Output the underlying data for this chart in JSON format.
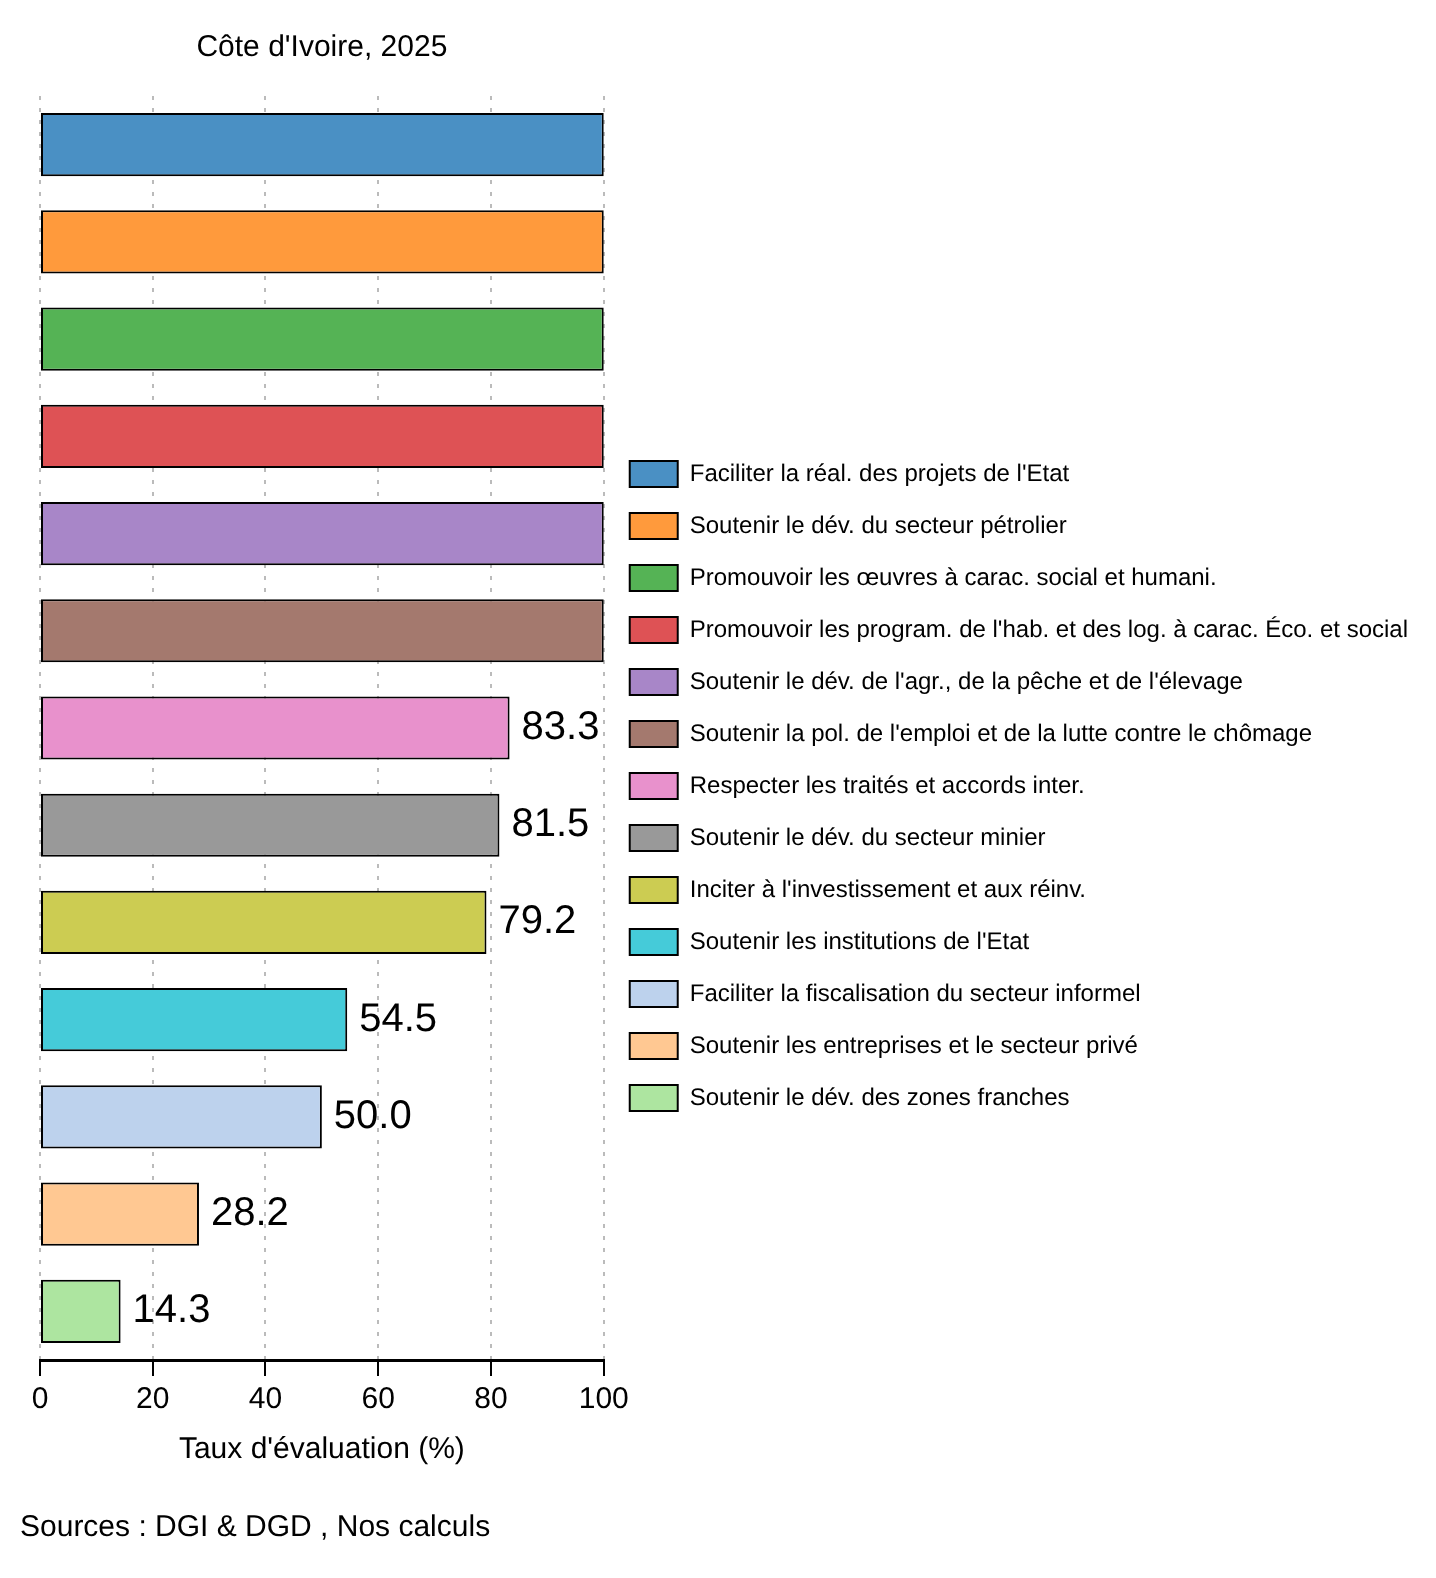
{
  "chart_data": {
    "type": "bar",
    "orientation": "horizontal",
    "title": "Côte d'Ivoire, 2025",
    "xlabel": "Taux d'évaluation (%)",
    "annotations": [
      "Sources : DGI & DGD , Nos calculs"
    ],
    "categories": [
      null,
      null,
      null,
      null,
      null,
      null,
      null,
      null,
      null,
      null,
      null,
      null,
      null
    ],
    "series": [
      {
        "name": "Faciliter la réal. des projets de l'Etat",
        "color": "#4a90c4",
        "values": [
          100,
          null,
          null,
          null,
          null,
          null,
          null,
          null,
          null,
          null,
          null,
          null,
          null
        ]
      },
      {
        "name": "Soutenir le dév. du secteur pétrolier",
        "color": "#ff9a3c",
        "values": [
          null,
          100,
          null,
          null,
          null,
          null,
          null,
          null,
          null,
          null,
          null,
          null,
          null
        ]
      },
      {
        "name": "Promouvoir les œuvres à carac. social et humani.",
        "color": "#55b355",
        "values": [
          null,
          null,
          100,
          null,
          null,
          null,
          null,
          null,
          null,
          null,
          null,
          null,
          null
        ]
      },
      {
        "name": "Promouvoir les program. de l'hab. et des log. à carac. Éco. et social",
        "color": "#de5255",
        "values": [
          null,
          null,
          null,
          100,
          null,
          null,
          null,
          null,
          null,
          null,
          null,
          null,
          null
        ]
      },
      {
        "name": "Soutenir le dév. de l'agr., de la pêche et de l'élevage",
        "color": "#a886c8",
        "values": [
          null,
          null,
          null,
          null,
          100,
          null,
          null,
          null,
          null,
          null,
          null,
          null,
          null
        ]
      },
      {
        "name": "Soutenir la pol. de l'emploi et de la lutte contre le chômage",
        "color": "#a4796e",
        "values": [
          null,
          null,
          null,
          null,
          null,
          100,
          null,
          null,
          null,
          null,
          null,
          null,
          null
        ]
      },
      {
        "name": "Respecter les traités et accords inter.",
        "color": "#e891cc",
        "values": [
          null,
          null,
          null,
          null,
          null,
          null,
          83.3,
          null,
          null,
          null,
          null,
          null,
          null
        ],
        "value_labels": [
          null,
          null,
          null,
          null,
          null,
          null,
          "83.3",
          null,
          null,
          null,
          null,
          null,
          null
        ]
      },
      {
        "name": "Soutenir le dév. du secteur minier",
        "color": "#999999",
        "values": [
          null,
          null,
          null,
          null,
          null,
          null,
          null,
          81.5,
          null,
          null,
          null,
          null,
          null
        ],
        "value_labels": [
          null,
          null,
          null,
          null,
          null,
          null,
          null,
          "81.5",
          null,
          null,
          null,
          null,
          null
        ]
      },
      {
        "name": "Inciter à l'investissement et aux réinv.",
        "color": "#cccc52",
        "values": [
          null,
          null,
          null,
          null,
          null,
          null,
          null,
          null,
          79.2,
          null,
          null,
          null,
          null
        ],
        "value_labels": [
          null,
          null,
          null,
          null,
          null,
          null,
          null,
          null,
          "79.2",
          null,
          null,
          null,
          null
        ]
      },
      {
        "name": "Soutenir les institutions de l'Etat",
        "color": "#45cbd9",
        "values": [
          null,
          null,
          null,
          null,
          null,
          null,
          null,
          null,
          null,
          54.5,
          null,
          null,
          null
        ],
        "value_labels": [
          null,
          null,
          null,
          null,
          null,
          null,
          null,
          null,
          null,
          "54.5",
          null,
          null,
          null
        ]
      },
      {
        "name": "Faciliter la fiscalisation du secteur informel",
        "color": "#bdd2ed",
        "values": [
          null,
          null,
          null,
          null,
          null,
          null,
          null,
          null,
          null,
          null,
          50.0,
          null,
          null
        ],
        "value_labels": [
          null,
          null,
          null,
          null,
          null,
          null,
          null,
          null,
          null,
          null,
          "50.0",
          null,
          null
        ]
      },
      {
        "name": "Soutenir les entreprises et le secteur privé",
        "color": "#ffc892",
        "values": [
          null,
          null,
          null,
          null,
          null,
          null,
          null,
          null,
          null,
          null,
          null,
          28.2,
          null
        ],
        "value_labels": [
          null,
          null,
          null,
          null,
          null,
          null,
          null,
          null,
          null,
          null,
          null,
          "28.2",
          null
        ]
      },
      {
        "name": "Soutenir le dév. des zones franches",
        "color": "#ade5a0",
        "values": [
          null,
          null,
          null,
          null,
          null,
          null,
          null,
          null,
          null,
          null,
          null,
          null,
          14.3
        ],
        "value_labels": [
          null,
          null,
          null,
          null,
          null,
          null,
          null,
          null,
          null,
          null,
          null,
          null,
          "14.3"
        ]
      }
    ],
    "xlim": [
      0,
      100
    ],
    "xticks": [
      0,
      20,
      40,
      60,
      80,
      100
    ],
    "grid": "x",
    "legend": "right",
    "tick_labels": "x"
  }
}
